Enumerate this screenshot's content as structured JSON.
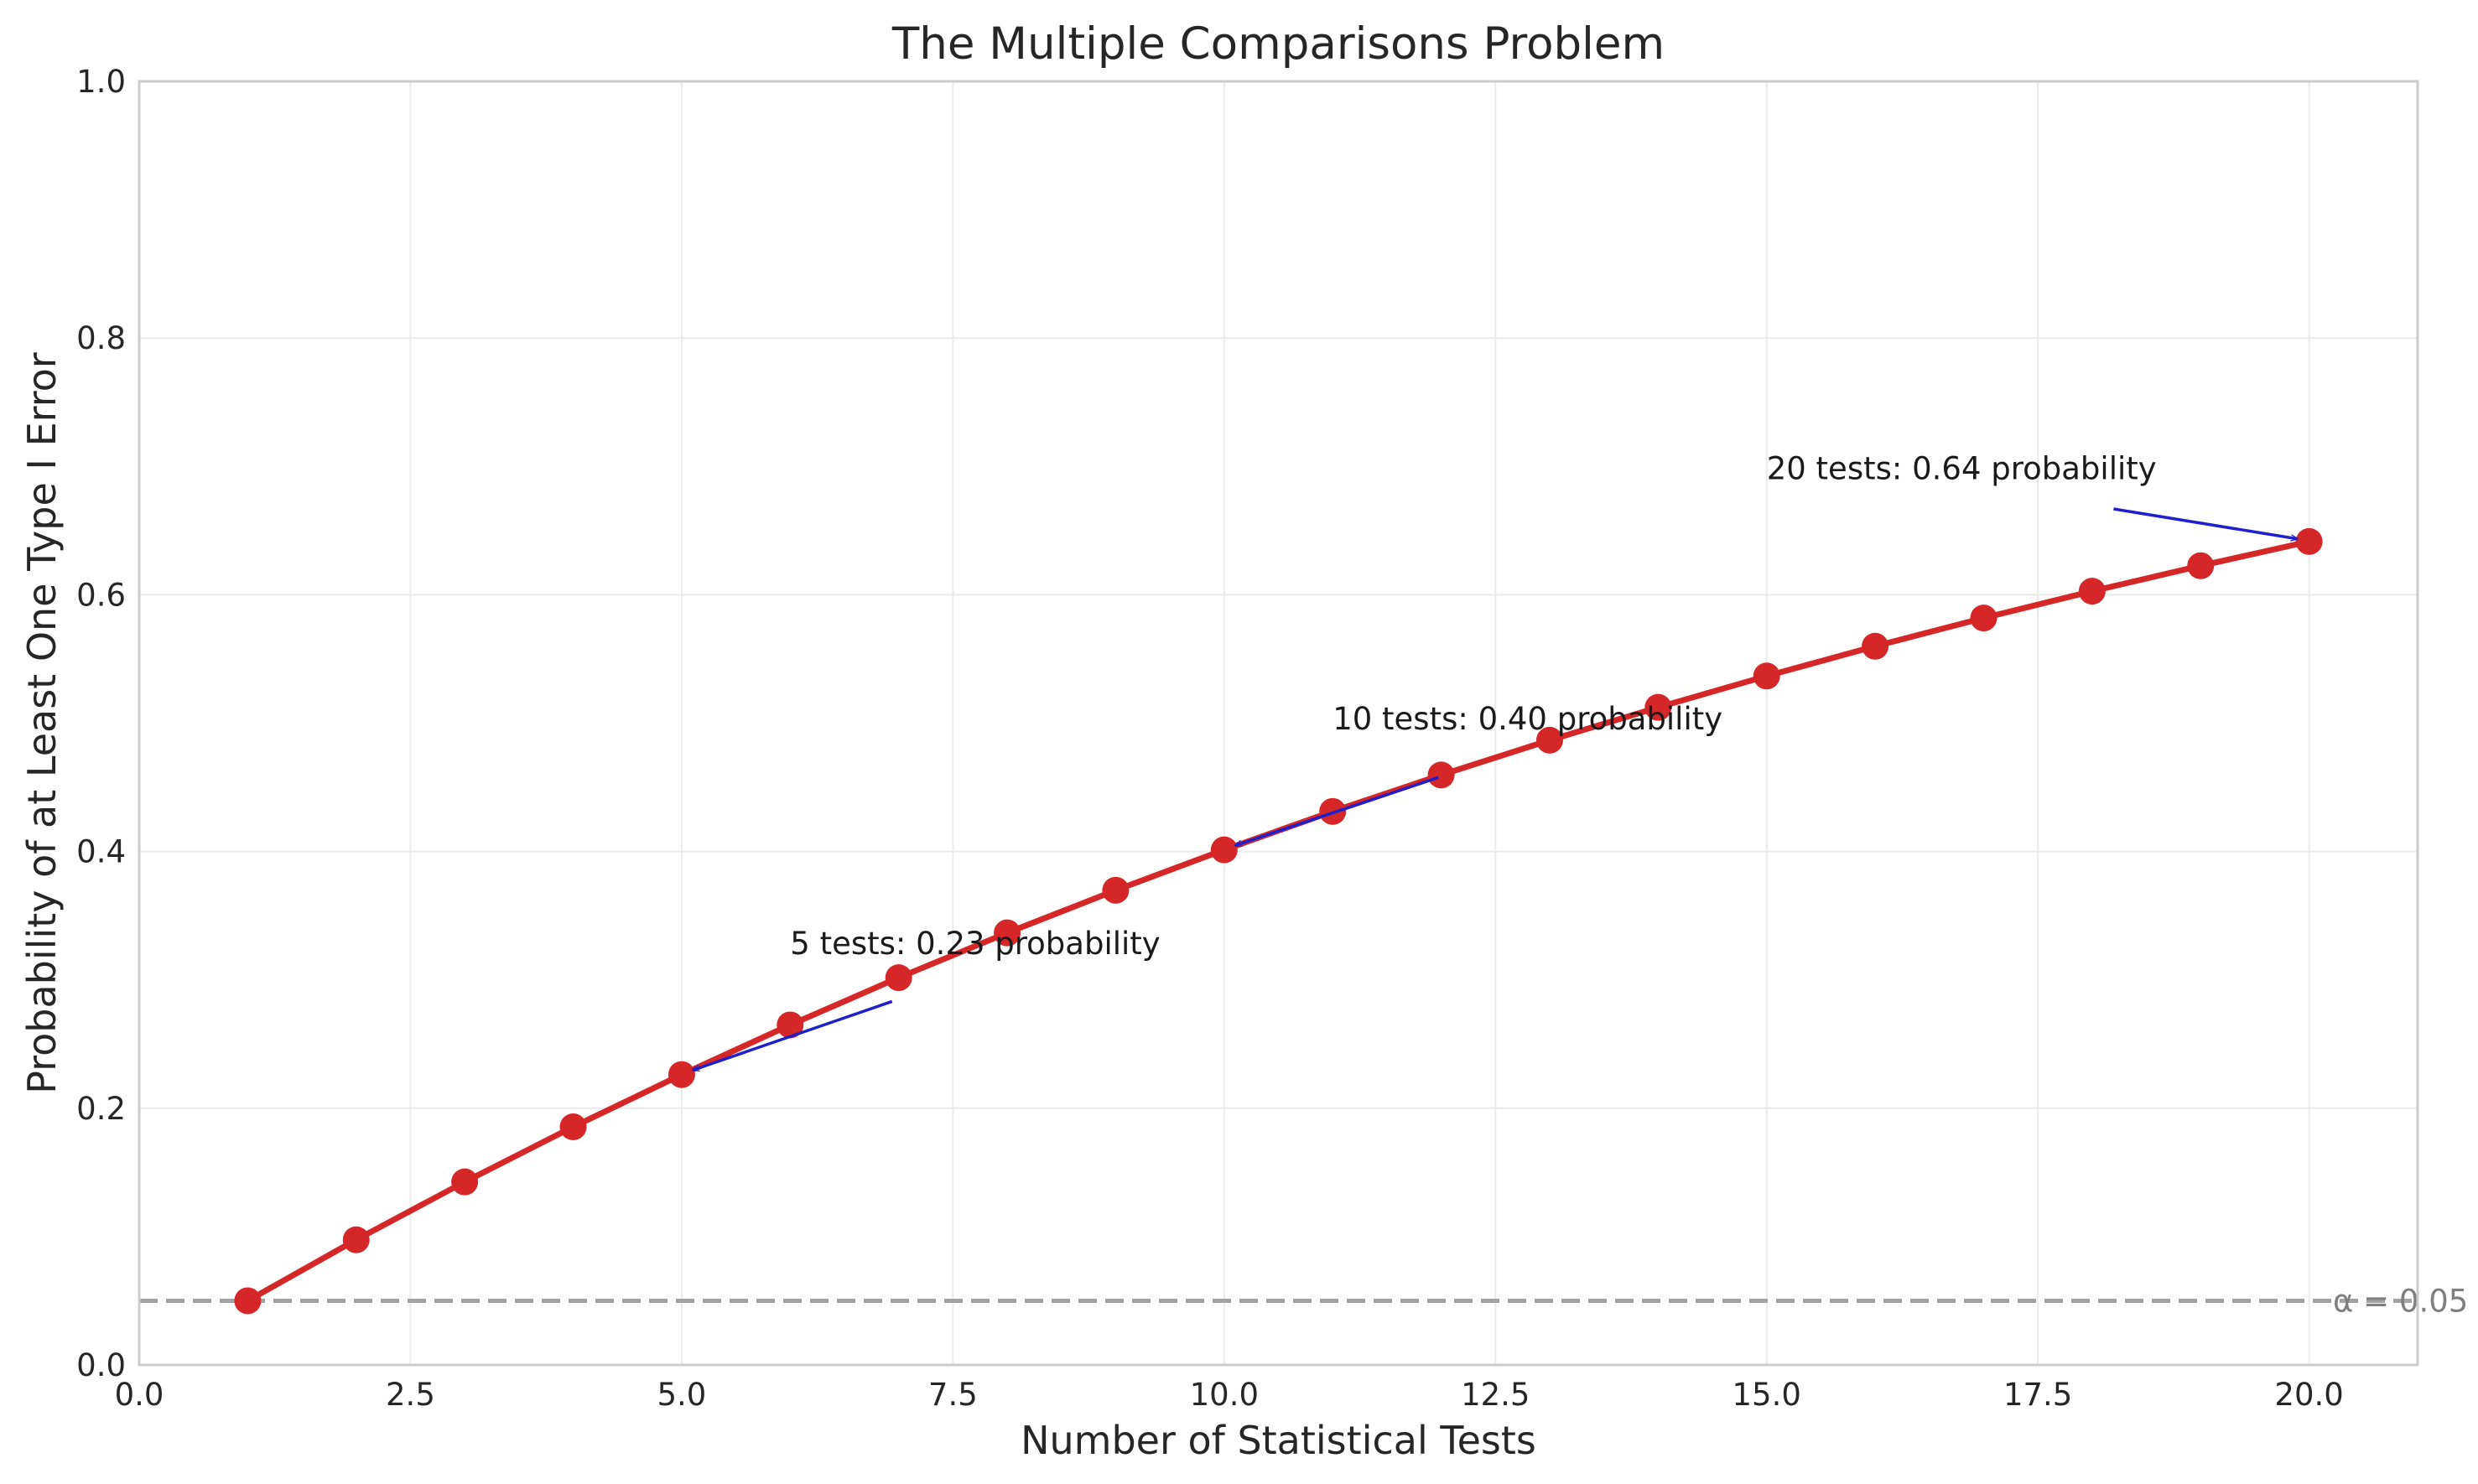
{
  "chart_data": {
    "type": "line",
    "title": "The Multiple Comparisons Problem",
    "xlabel": "Number of Statistical Tests",
    "ylabel": "Probability of at Least One Type I Error",
    "xlim": [
      0,
      21
    ],
    "ylim": [
      0,
      1
    ],
    "xticks": [
      0,
      2.5,
      5,
      7.5,
      10,
      12.5,
      15,
      17.5,
      20
    ],
    "xtick_labels": [
      "0.0",
      "2.5",
      "5.0",
      "7.5",
      "10.0",
      "12.5",
      "15.0",
      "17.5",
      "20.0"
    ],
    "yticks": [
      0,
      0.2,
      0.4,
      0.6,
      0.8,
      1.0
    ],
    "ytick_labels": [
      "0.0",
      "0.2",
      "0.4",
      "0.6",
      "0.8",
      "1.0"
    ],
    "grid": true,
    "series": [
      {
        "color": "#d62728",
        "x": [
          1,
          2,
          3,
          4,
          5,
          6,
          7,
          8,
          9,
          10,
          11,
          12,
          13,
          14,
          15,
          16,
          17,
          18,
          19,
          20
        ],
        "values": [
          0.05,
          0.0975,
          0.1426,
          0.1855,
          0.2262,
          0.2649,
          0.3017,
          0.3366,
          0.3698,
          0.4013,
          0.4312,
          0.4596,
          0.4867,
          0.5123,
          0.5367,
          0.5599,
          0.5819,
          0.6028,
          0.6226,
          0.6415
        ]
      }
    ],
    "reference_line": {
      "y": 0.05,
      "label": "α = 0.05",
      "color": "#a3a3a3",
      "style": "dashed"
    },
    "annotations": [
      {
        "text": "5 tests: 0.23 probability",
        "point_x": 5,
        "point_y": 0.2262,
        "text_x": 6,
        "text_y": 0.32,
        "color": "#1f1fcc"
      },
      {
        "text": "10 tests: 0.40 probability",
        "point_x": 10,
        "point_y": 0.4013,
        "text_x": 11,
        "text_y": 0.495,
        "color": "#1f1fcc"
      },
      {
        "text": "20 tests: 0.64 probability",
        "point_x": 20,
        "point_y": 0.6415,
        "text_x": 15,
        "text_y": 0.69,
        "color": "#1f1fcc"
      }
    ]
  }
}
